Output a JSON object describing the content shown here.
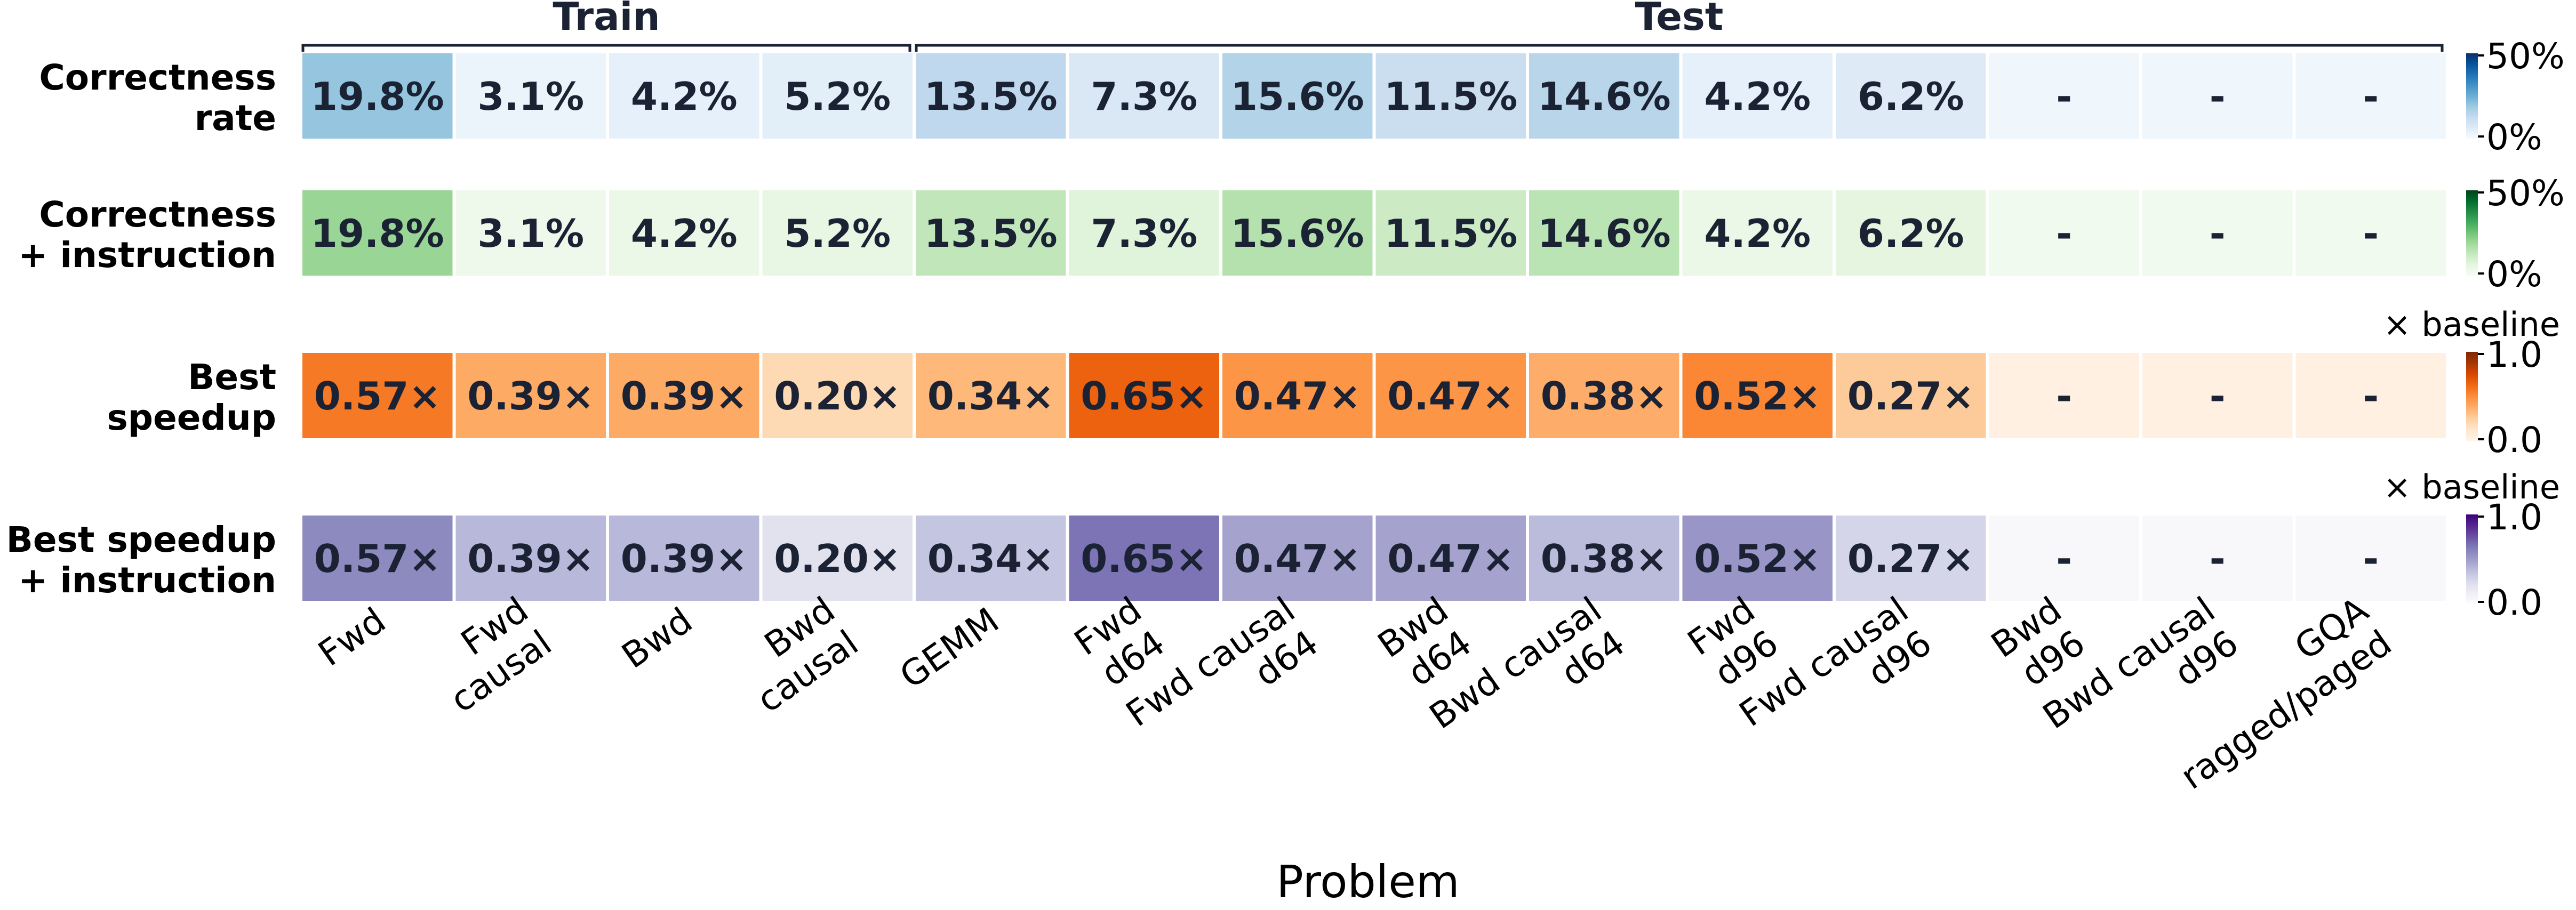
{
  "chart_data": {
    "type": "heatmap",
    "xlabel": "Problem",
    "groups": [
      {
        "label": "Train",
        "start": 0,
        "end": 3
      },
      {
        "label": "Test",
        "start": 4,
        "end": 13
      }
    ],
    "columns": [
      [
        "Fwd"
      ],
      [
        "Fwd",
        "causal"
      ],
      [
        "Bwd"
      ],
      [
        "Bwd",
        "causal"
      ],
      [
        "GEMM"
      ],
      [
        "Fwd",
        "d64"
      ],
      [
        "Fwd causal",
        "d64"
      ],
      [
        "Bwd",
        "d64"
      ],
      [
        "Bwd causal",
        "d64"
      ],
      [
        "Fwd",
        "d96"
      ],
      [
        "Fwd causal",
        "d96"
      ],
      [
        "Bwd",
        "d96"
      ],
      [
        "Bwd causal",
        "d96"
      ],
      [
        "GQA",
        "ragged/paged"
      ]
    ],
    "rows": [
      {
        "label": [
          "Correctness",
          "rate"
        ],
        "colormap": "blue",
        "vmin": 0,
        "vmax": 50,
        "values": [
          19.8,
          3.1,
          4.2,
          5.2,
          13.5,
          7.3,
          15.6,
          11.5,
          14.6,
          4.2,
          6.2,
          null,
          null,
          null
        ],
        "labels": [
          "19.8%",
          "3.1%",
          "4.2%",
          "5.2%",
          "13.5%",
          "7.3%",
          "15.6%",
          "11.5%",
          "14.6%",
          "4.2%",
          "6.2%",
          "-",
          "-",
          "-"
        ],
        "colorbar": {
          "top": "50%",
          "bottom": "0%",
          "unit": ""
        }
      },
      {
        "label": [
          "Correctness",
          "+ instruction"
        ],
        "colormap": "green",
        "vmin": 0,
        "vmax": 50,
        "values": [
          19.8,
          3.1,
          4.2,
          5.2,
          13.5,
          7.3,
          15.6,
          11.5,
          14.6,
          4.2,
          6.2,
          null,
          null,
          null
        ],
        "labels": [
          "19.8%",
          "3.1%",
          "4.2%",
          "5.2%",
          "13.5%",
          "7.3%",
          "15.6%",
          "11.5%",
          "14.6%",
          "4.2%",
          "6.2%",
          "-",
          "-",
          "-"
        ],
        "colorbar": {
          "top": "50%",
          "bottom": "0%",
          "unit": ""
        }
      },
      {
        "label": [
          "Best",
          "speedup"
        ],
        "colormap": "orange",
        "vmin": 0,
        "vmax": 1.0,
        "values": [
          0.57,
          0.39,
          0.39,
          0.2,
          0.34,
          0.65,
          0.47,
          0.47,
          0.38,
          0.52,
          0.27,
          null,
          null,
          null
        ],
        "labels": [
          "0.57×",
          "0.39×",
          "0.39×",
          "0.20×",
          "0.34×",
          "0.65×",
          "0.47×",
          "0.47×",
          "0.38×",
          "0.52×",
          "0.27×",
          "-",
          "-",
          "-"
        ],
        "colorbar": {
          "top": "1.0",
          "bottom": "0.0",
          "unit": "× baseline"
        }
      },
      {
        "label": [
          "Best speedup",
          "+ instruction"
        ],
        "colormap": "purple",
        "vmin": 0,
        "vmax": 1.0,
        "values": [
          0.57,
          0.39,
          0.39,
          0.2,
          0.34,
          0.65,
          0.47,
          0.47,
          0.38,
          0.52,
          0.27,
          null,
          null,
          null
        ],
        "labels": [
          "0.57×",
          "0.39×",
          "0.39×",
          "0.20×",
          "0.34×",
          "0.65×",
          "0.47×",
          "0.47×",
          "0.38×",
          "0.52×",
          "0.27×",
          "-",
          "-",
          "-"
        ],
        "colorbar": {
          "top": "1.0",
          "bottom": "0.0",
          "unit": "× baseline"
        }
      }
    ]
  }
}
